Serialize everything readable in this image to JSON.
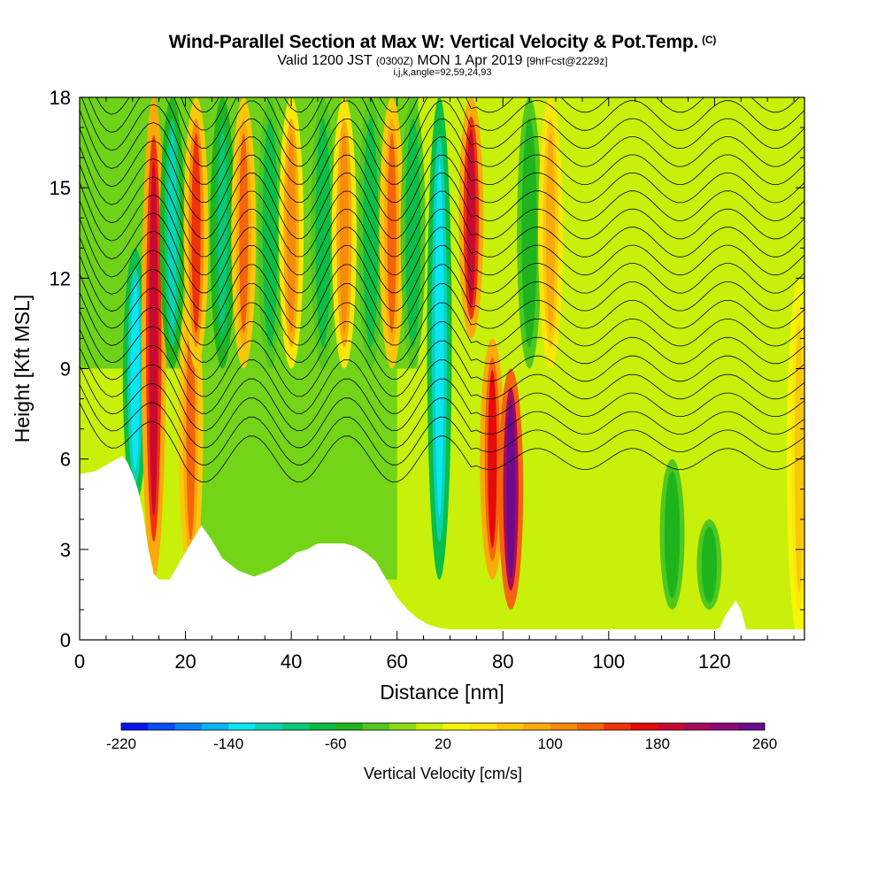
{
  "header": {
    "title": "Wind-Parallel Section at Max W: Vertical Velocity & Pot.Temp.",
    "title_mark": "(C)",
    "valid_prefix": "Valid 1200 JST",
    "valid_utc": "(0300Z)",
    "valid_date": "MON 1 Apr 2019",
    "forecast": "[9hrFcst@2229z]",
    "indices": "i,j,k,angle=92,59,24,93"
  },
  "chart_data": {
    "type": "heatmap",
    "xlabel": "Distance [nm]",
    "ylabel": "Height [Kft MSL]",
    "xlim": [
      0,
      137
    ],
    "ylim": [
      0,
      18
    ],
    "x_ticks": [
      0,
      20,
      40,
      60,
      80,
      100,
      120
    ],
    "y_ticks": [
      0,
      3,
      6,
      9,
      12,
      15,
      18
    ],
    "colorbar": {
      "label": "Vertical Velocity [cm/s]",
      "min": -220,
      "max": 260,
      "step": 20,
      "tick_values": [
        -220,
        -140,
        -60,
        20,
        100,
        180,
        260
      ],
      "colors": [
        "#0a14f0",
        "#0a4cf5",
        "#0a82f5",
        "#0ab4f5",
        "#0ae6f5",
        "#0ad2b4",
        "#0ac878",
        "#0abe46",
        "#1eb41e",
        "#50c81e",
        "#8cdc14",
        "#c8f00a",
        "#f5f50a",
        "#fae60a",
        "#fac80a",
        "#faaa0a",
        "#f58c0a",
        "#f5640a",
        "#f0320a",
        "#e60a0a",
        "#c80a32",
        "#aa0a5a",
        "#8c0a78",
        "#6e0a8c"
      ]
    },
    "terrain_profile": {
      "distance_nm": [
        0,
        3,
        5,
        7,
        8,
        9,
        10,
        11,
        12,
        13,
        14,
        15,
        17,
        19,
        21,
        23,
        25,
        27,
        30,
        33,
        36,
        39,
        41,
        43,
        45,
        48,
        50,
        52,
        54,
        56,
        58,
        60,
        62,
        64,
        66,
        68,
        70,
        72,
        100,
        117,
        118,
        119,
        120,
        121,
        122,
        124,
        125,
        126,
        137
      ],
      "height_kft": [
        5.5,
        5.6,
        5.8,
        6.0,
        6.1,
        5.9,
        5.5,
        5.0,
        4.2,
        3.0,
        2.2,
        2.0,
        2.0,
        2.6,
        3.2,
        3.8,
        3.3,
        2.7,
        2.3,
        2.1,
        2.3,
        2.6,
        2.9,
        3.0,
        3.2,
        3.2,
        3.2,
        3.1,
        2.9,
        2.6,
        2.0,
        1.4,
        1.0,
        0.7,
        0.5,
        0.4,
        0.35,
        0.35,
        0.35,
        0.35,
        0.35,
        0.35,
        0.35,
        0.4,
        0.8,
        1.3,
        1.0,
        0.35,
        0.35
      ]
    },
    "vertical_velocity_features": [
      {
        "x_nm": 10.5,
        "z_kft": [
          4.5,
          13
        ],
        "w_cm_s": -140
      },
      {
        "x_nm": 14,
        "z_kft": [
          2,
          18
        ],
        "w_cm_s": 180
      },
      {
        "x_nm": 17.5,
        "z_kft": [
          9,
          18
        ],
        "w_cm_s": -120
      },
      {
        "x_nm": 21,
        "z_kft": [
          2,
          12
        ],
        "w_cm_s": 120
      },
      {
        "x_nm": 22,
        "z_kft": [
          9,
          18
        ],
        "w_cm_s": 140
      },
      {
        "x_nm": 27,
        "z_kft": [
          9,
          18
        ],
        "w_cm_s": -100
      },
      {
        "x_nm": 31,
        "z_kft": [
          9,
          18
        ],
        "w_cm_s": 120
      },
      {
        "x_nm": 36,
        "z_kft": [
          9,
          18
        ],
        "w_cm_s": -80
      },
      {
        "x_nm": 40,
        "z_kft": [
          9,
          18
        ],
        "w_cm_s": 100
      },
      {
        "x_nm": 46,
        "z_kft": [
          9,
          18
        ],
        "w_cm_s": -80
      },
      {
        "x_nm": 50,
        "z_kft": [
          9,
          18
        ],
        "w_cm_s": 100
      },
      {
        "x_nm": 55,
        "z_kft": [
          9,
          18
        ],
        "w_cm_s": -80
      },
      {
        "x_nm": 59,
        "z_kft": [
          9,
          18
        ],
        "w_cm_s": 120
      },
      {
        "x_nm": 63,
        "z_kft": [
          9,
          18
        ],
        "w_cm_s": -80
      },
      {
        "x_nm": 68,
        "z_kft": [
          2,
          18
        ],
        "w_cm_s": -140
      },
      {
        "x_nm": 74,
        "z_kft": [
          10,
          18
        ],
        "w_cm_s": 180
      },
      {
        "x_nm": 78,
        "z_kft": [
          2,
          10
        ],
        "w_cm_s": 160
      },
      {
        "x_nm": 81.5,
        "z_kft": [
          1,
          9
        ],
        "w_cm_s": 260
      },
      {
        "x_nm": 85,
        "z_kft": [
          9,
          18
        ],
        "w_cm_s": -60
      },
      {
        "x_nm": 89,
        "z_kft": [
          9,
          18
        ],
        "w_cm_s": 80
      },
      {
        "x_nm": 112,
        "z_kft": [
          1,
          6
        ],
        "w_cm_s": -60
      },
      {
        "x_nm": 119,
        "z_kft": [
          1,
          4
        ],
        "w_cm_s": -60
      },
      {
        "x_nm": 136,
        "z_kft": [
          0,
          12
        ],
        "w_cm_s": 60
      }
    ]
  }
}
